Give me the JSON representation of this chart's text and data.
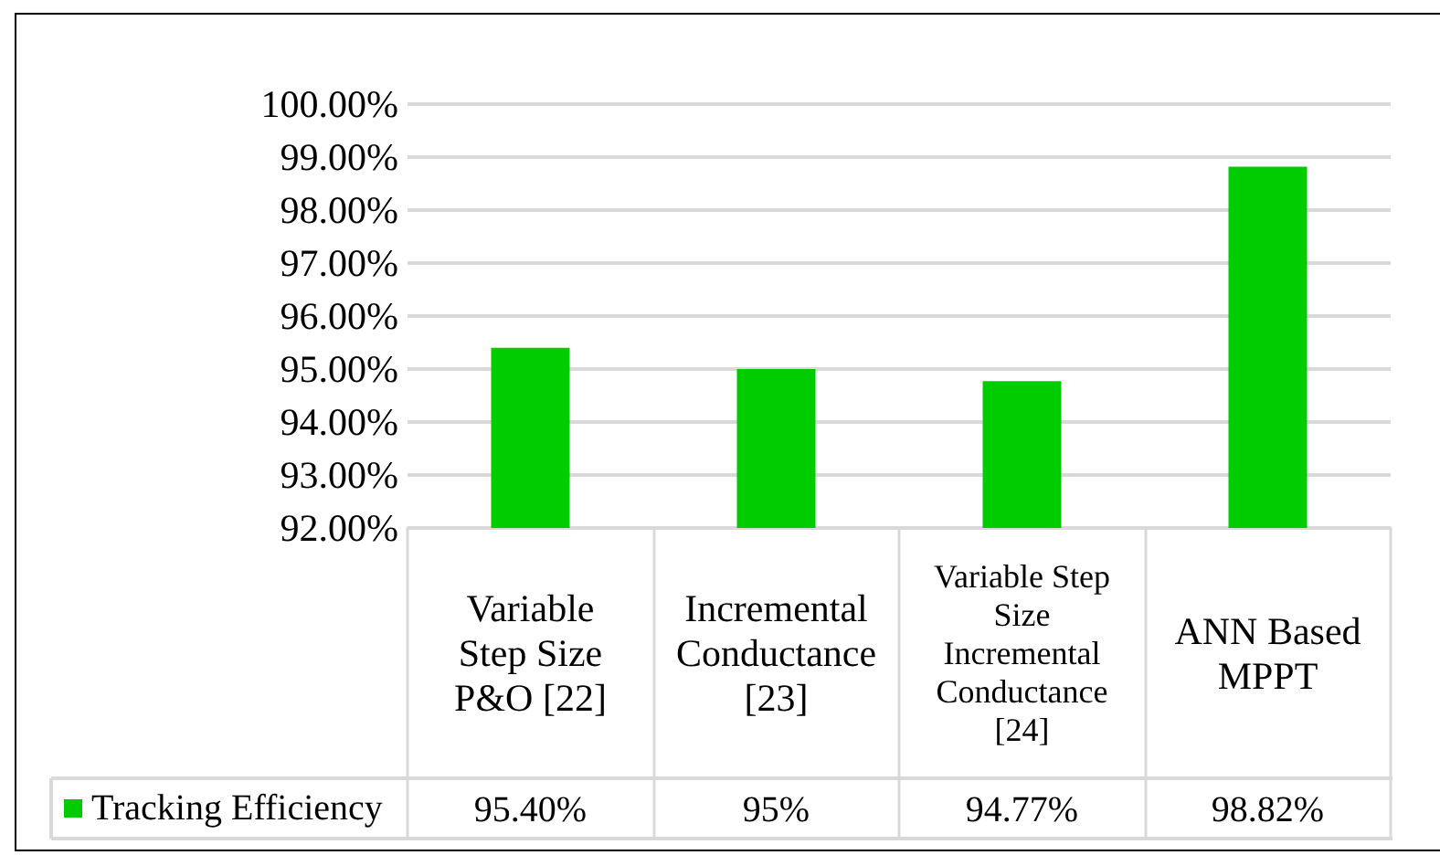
{
  "chart_data": {
    "type": "bar",
    "categories": [
      "Variable Step Size P&O [22]",
      "Incremental Conductance [23]",
      "Variable Step Size Incremental Conductance [24]",
      "ANN Based MPPT"
    ],
    "series": [
      {
        "name": "Tracking Efficiency",
        "color": "#00cc00",
        "values": [
          95.4,
          95,
          94.77,
          98.82
        ],
        "value_labels": [
          "95.40%",
          "95%",
          "94.77%",
          "98.82%"
        ]
      }
    ],
    "ylim": [
      92,
      100
    ],
    "yticks": [
      {
        "value": 92,
        "label": "92.00%"
      },
      {
        "value": 93,
        "label": "93.00%"
      },
      {
        "value": 94,
        "label": "94.00%"
      },
      {
        "value": 95,
        "label": "95.00%"
      },
      {
        "value": 96,
        "label": "96.00%"
      },
      {
        "value": 97,
        "label": "97.00%"
      },
      {
        "value": 98,
        "label": "98.00%"
      },
      {
        "value": 99,
        "label": "99.00%"
      },
      {
        "value": 100,
        "label": "100.00%"
      }
    ],
    "grid": "y",
    "legend": "bottom left"
  }
}
